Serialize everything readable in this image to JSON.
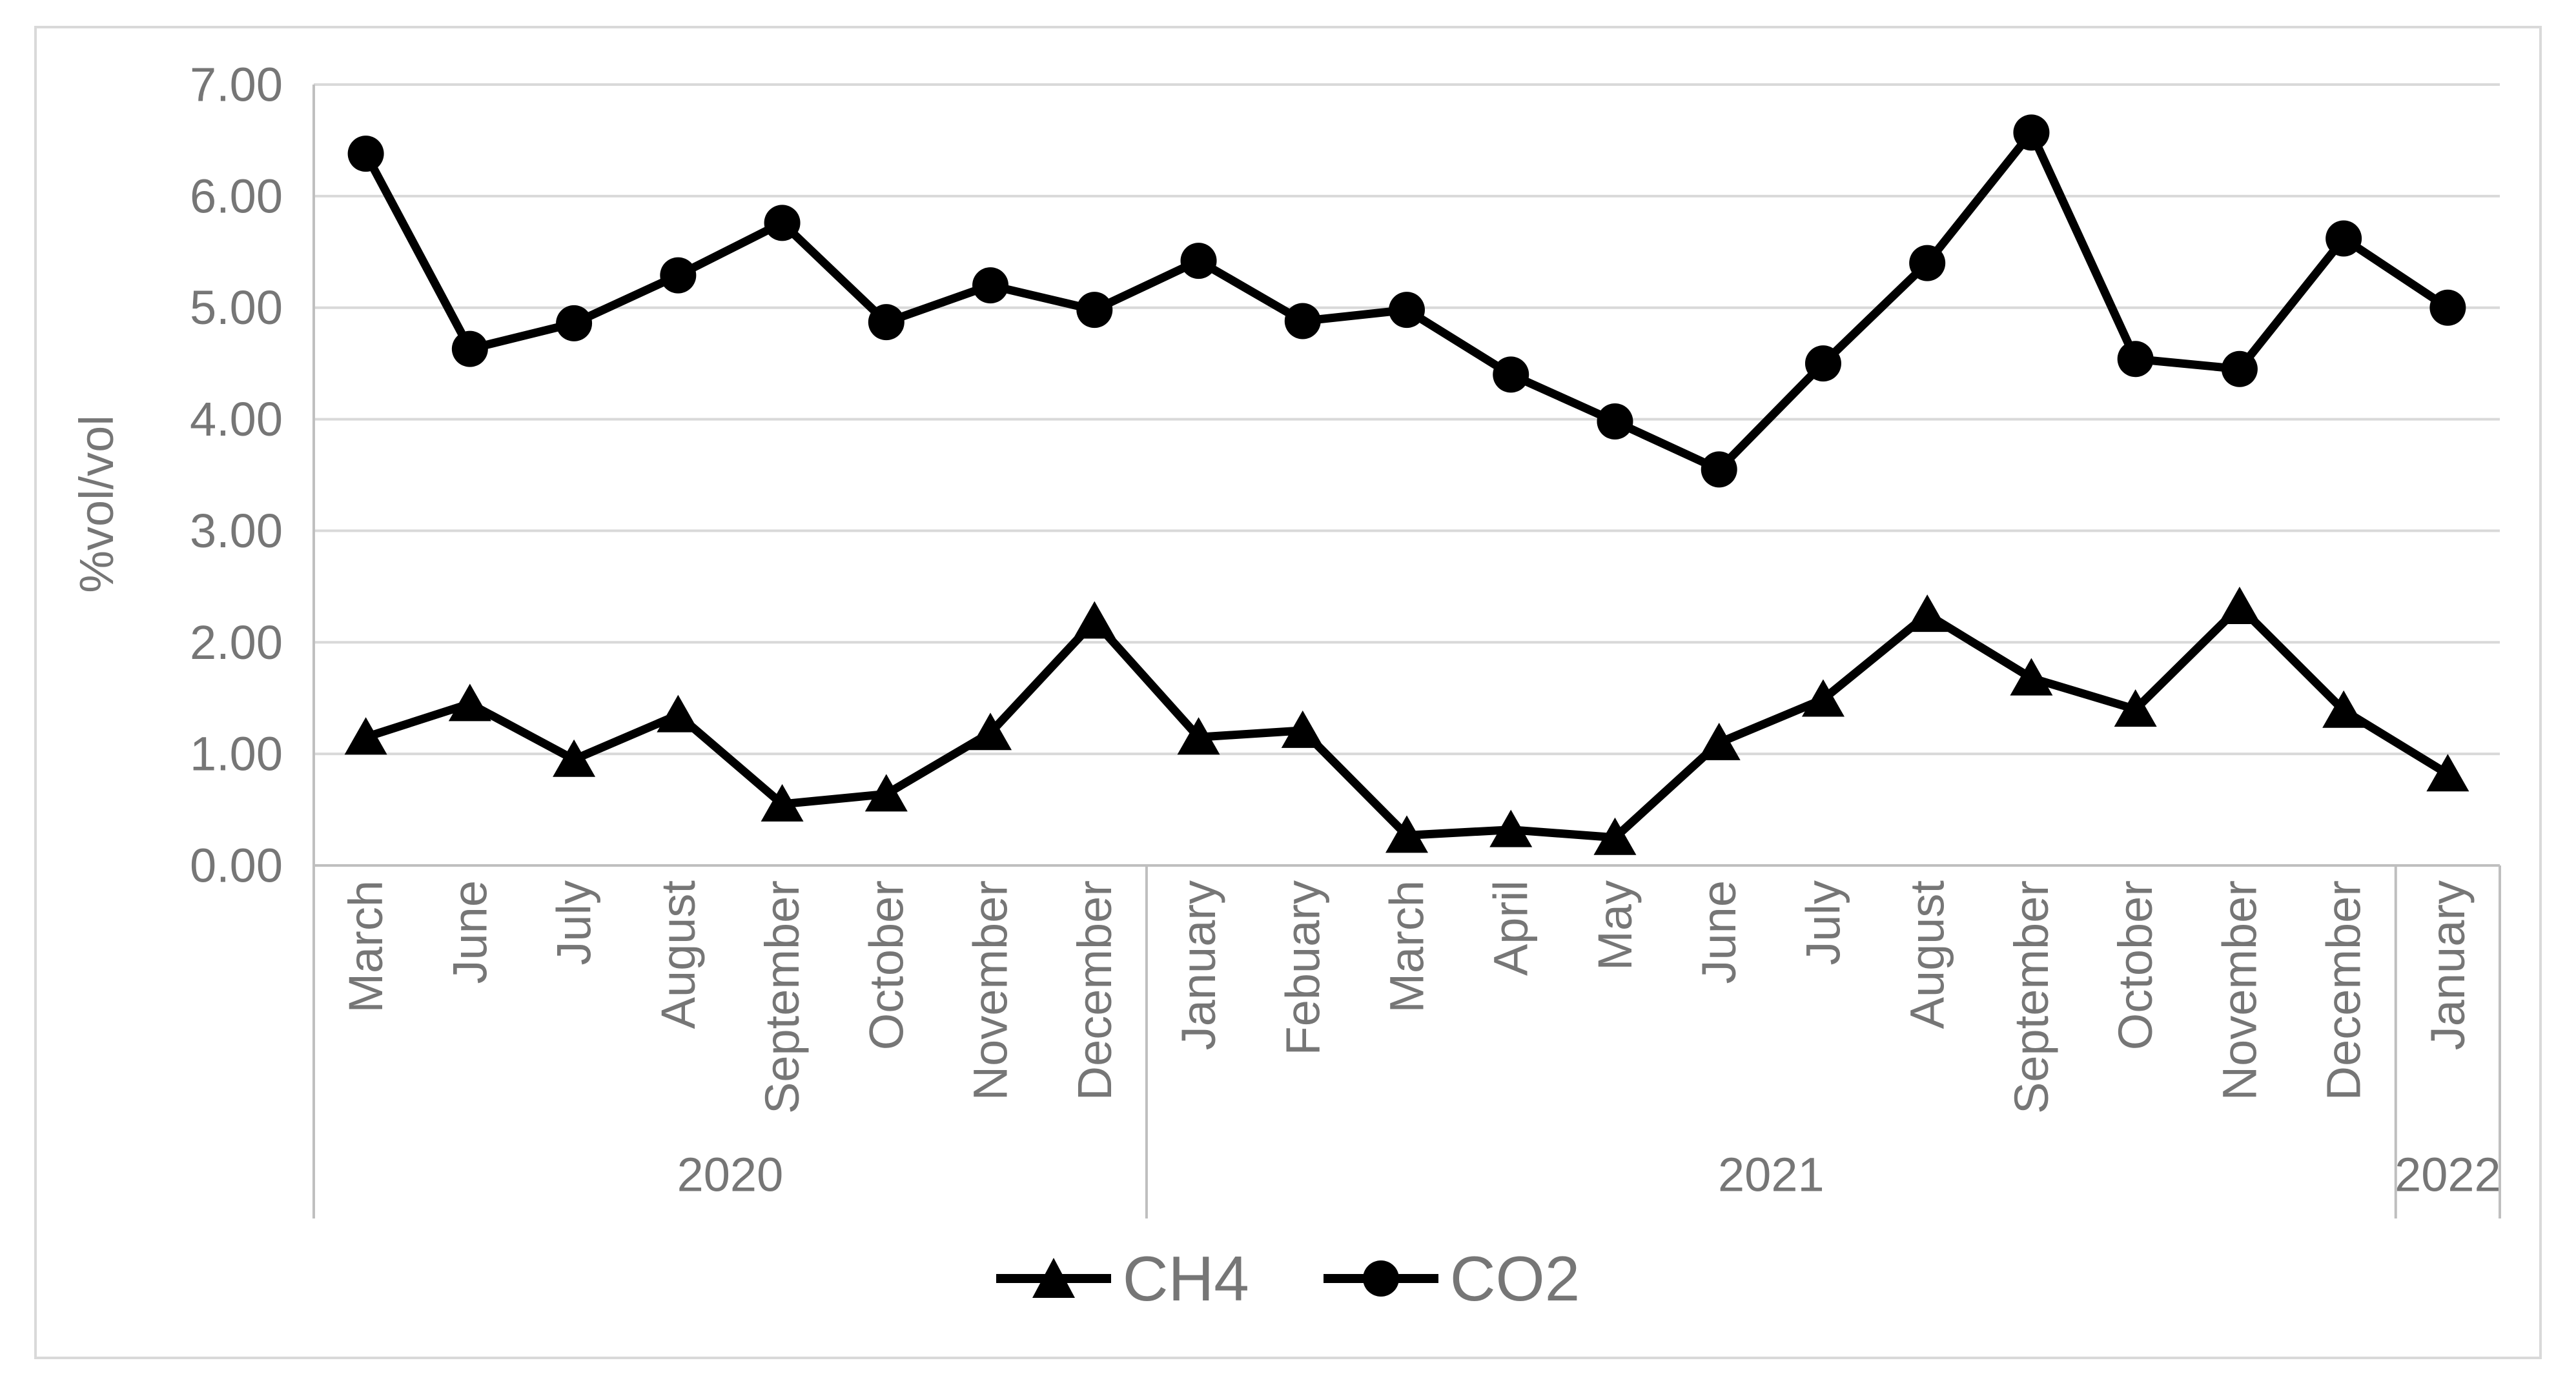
{
  "chart_data": {
    "type": "line",
    "title": "",
    "xlabel": "",
    "ylabel": "%vol/vol",
    "ylim": [
      0,
      7
    ],
    "ytick_step": 1,
    "ytick_labels": [
      "0.00",
      "1.00",
      "2.00",
      "3.00",
      "4.00",
      "5.00",
      "6.00",
      "7.00"
    ],
    "grid": "horizontal",
    "legend_position": "bottom-center",
    "categories": [
      "March",
      "June",
      "July",
      "August",
      "September",
      "October",
      "November",
      "December",
      "January",
      "Febuary",
      "March",
      "April",
      "May",
      "June",
      "July",
      "August",
      "September",
      "October",
      "November",
      "December",
      "January"
    ],
    "year_groups": [
      {
        "label": "2020",
        "count": 8
      },
      {
        "label": "2021",
        "count": 12
      },
      {
        "label": "2022",
        "count": 1
      }
    ],
    "series": [
      {
        "name": "CH4",
        "marker": "triangle",
        "color": "#000000",
        "values": [
          1.15,
          1.45,
          0.95,
          1.35,
          0.55,
          0.64,
          1.19,
          2.19,
          1.15,
          1.21,
          0.27,
          0.32,
          0.25,
          1.1,
          1.49,
          2.25,
          1.68,
          1.4,
          2.32,
          1.39,
          0.82
        ]
      },
      {
        "name": "CO2",
        "marker": "circle",
        "color": "#000000",
        "values": [
          6.38,
          4.63,
          4.86,
          5.29,
          5.76,
          4.87,
          5.2,
          4.98,
          5.42,
          4.88,
          4.98,
          4.4,
          3.98,
          3.55,
          4.5,
          5.4,
          6.57,
          4.54,
          4.45,
          5.62,
          5.0
        ]
      }
    ]
  },
  "colors": {
    "gridline": "#d9d9d9",
    "axis_line": "#bfbfbf",
    "divider_line": "#bfbfbf",
    "tick_text": "#767676",
    "series": "#000000",
    "frame_border": "#d9d9d9",
    "background": "#ffffff"
  }
}
